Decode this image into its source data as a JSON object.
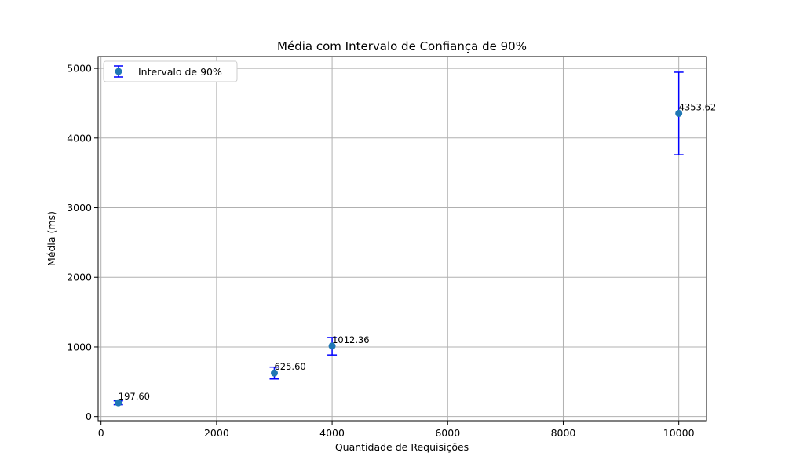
{
  "chart_data": {
    "type": "scatter",
    "title": "Média com Intervalo de Confiança de 90%",
    "xlabel": "Quantidade de Requisições",
    "ylabel": "Média (ms)",
    "xlim": [
      -50,
      10480
    ],
    "ylim": [
      -60,
      5170
    ],
    "xticks": [
      0,
      2000,
      4000,
      6000,
      8000,
      10000
    ],
    "yticks": [
      0,
      1000,
      2000,
      3000,
      4000,
      5000
    ],
    "grid": true,
    "legend_position": "top-left",
    "colors": {
      "marker": "#1f77b4",
      "errorbar": "#0000ff",
      "grid": "#b0b0b0"
    },
    "series": [
      {
        "name": "Intervalo de 90%",
        "x": [
          300,
          3000,
          4000,
          10000
        ],
        "y": [
          197.6,
          625.6,
          1012.36,
          4353.62
        ],
        "yerr_low": [
          170,
          540,
          885,
          3760
        ],
        "yerr_high": [
          225,
          710,
          1135,
          4945
        ],
        "labels": [
          "197.60",
          "625.60",
          "1012.36",
          "4353.62"
        ]
      }
    ]
  }
}
